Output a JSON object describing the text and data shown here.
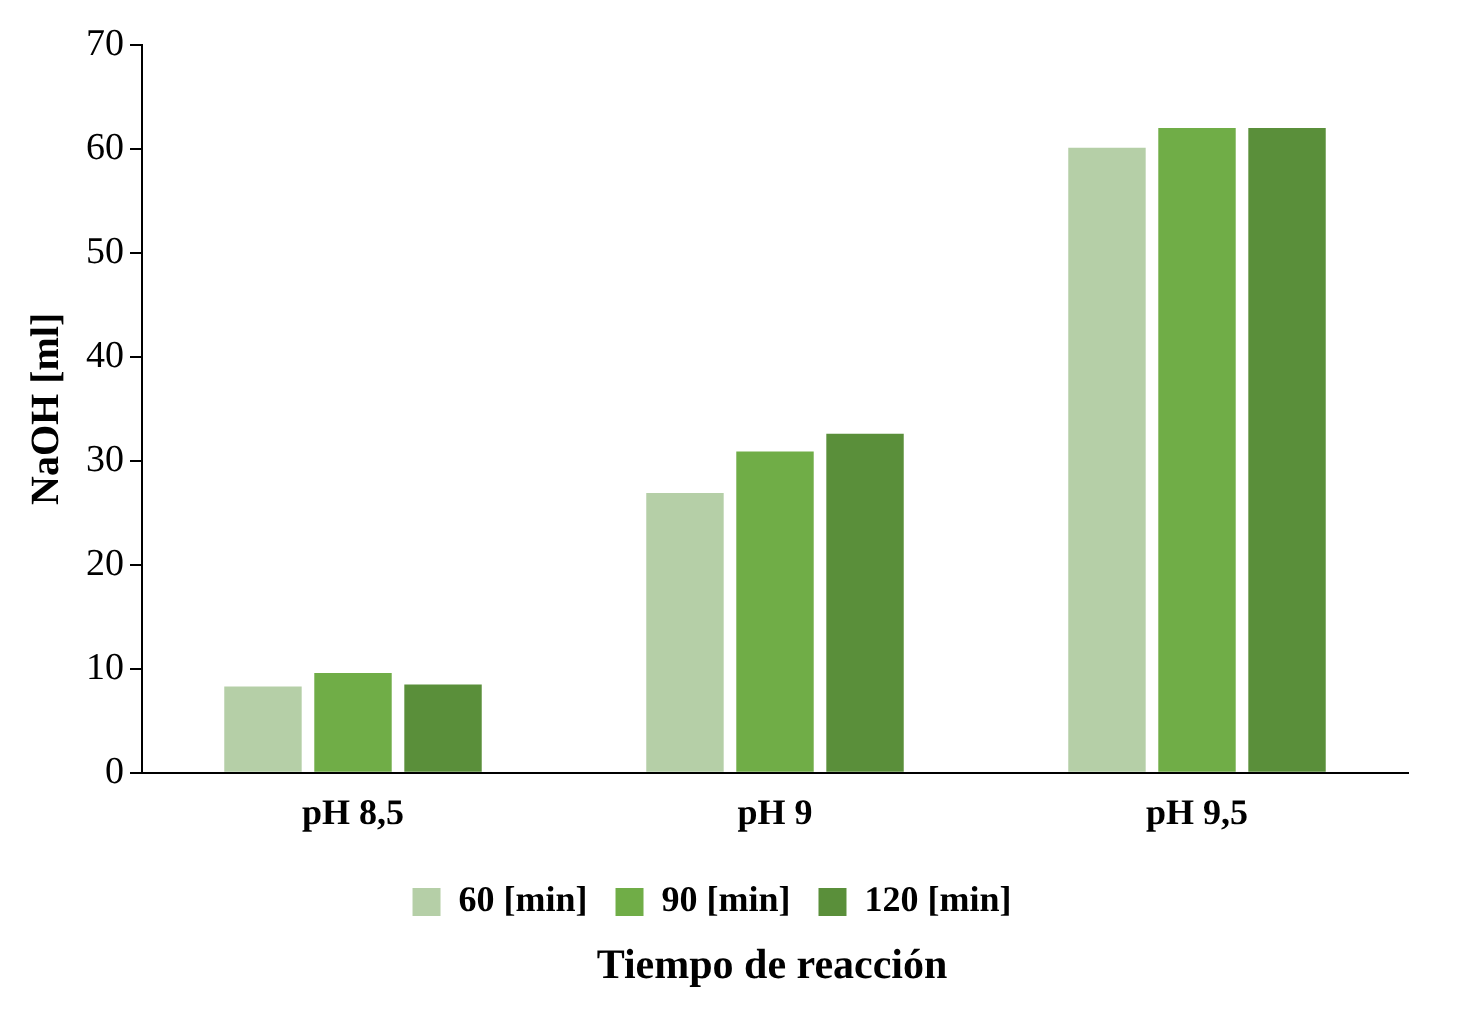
{
  "chart_data": {
    "type": "bar",
    "xlabel": "Tiempo de reacción",
    "ylabel": "NaOH [ml]",
    "categories": [
      "pH 8,5",
      "pH 9",
      "pH 9,5"
    ],
    "series": [
      {
        "name": "60 [min]",
        "color": "#b5cfa7",
        "values": [
          8.3,
          26.9,
          60.1
        ]
      },
      {
        "name": "90 [min]",
        "color": "#70ad47",
        "values": [
          9.6,
          30.9,
          62
        ]
      },
      {
        "name": "120 [min]",
        "color": "#5a8f3a",
        "values": [
          8.5,
          32.6,
          62
        ]
      }
    ],
    "ylim": [
      0,
      70
    ],
    "yticks": [
      0,
      10,
      20,
      30,
      40,
      50,
      60,
      70
    ],
    "grid": false,
    "legend": "bottom"
  }
}
